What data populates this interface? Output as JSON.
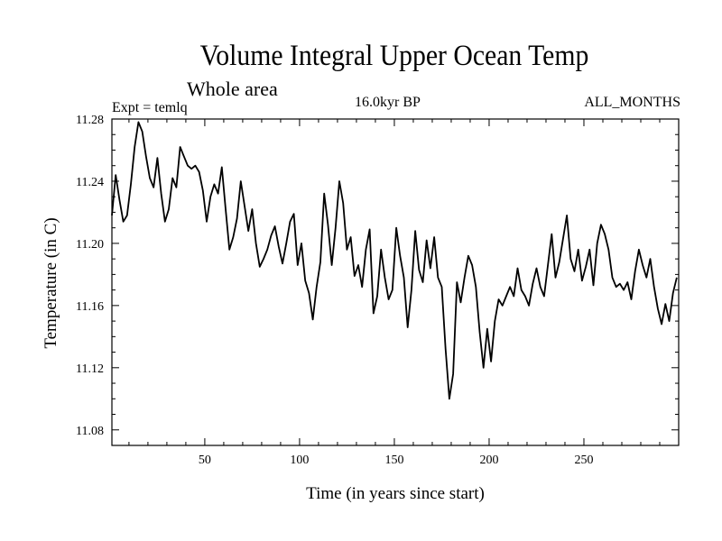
{
  "chart_data": {
    "type": "line",
    "title": "Volume Integral Upper Ocean Temp",
    "subtitle": "Whole area",
    "experiment": "Expt = temlq",
    "period": "16.0kyr BP",
    "months": "ALL_MONTHS",
    "xlabel": "Time (in years since start)",
    "ylabel": "Temperature (in C)",
    "xlim": [
      1,
      300
    ],
    "ylim": [
      11.07,
      11.28
    ],
    "xticks": [
      50,
      100,
      150,
      200,
      250
    ],
    "yticks": [
      "11.08",
      "11.12",
      "11.16",
      "11.20",
      "11.24",
      "11.28"
    ],
    "grid": false,
    "series": [
      {
        "name": "temlq",
        "x": [
          1,
          3,
          5,
          7,
          9,
          11,
          13,
          15,
          17,
          19,
          21,
          23,
          25,
          27,
          29,
          31,
          33,
          35,
          37,
          39,
          41,
          43,
          45,
          47,
          49,
          51,
          53,
          55,
          57,
          59,
          61,
          63,
          65,
          67,
          69,
          71,
          73,
          75,
          77,
          79,
          81,
          83,
          85,
          87,
          89,
          91,
          93,
          95,
          97,
          99,
          101,
          103,
          105,
          107,
          109,
          111,
          113,
          115,
          117,
          119,
          121,
          123,
          125,
          127,
          129,
          131,
          133,
          135,
          137,
          139,
          141,
          143,
          145,
          147,
          149,
          151,
          153,
          155,
          157,
          159,
          161,
          163,
          165,
          167,
          169,
          171,
          173,
          175,
          177,
          179,
          181,
          183,
          185,
          187,
          189,
          191,
          193,
          195,
          197,
          199,
          201,
          203,
          205,
          207,
          209,
          211,
          213,
          215,
          217,
          219,
          221,
          223,
          225,
          227,
          229,
          231,
          233,
          235,
          237,
          239,
          241,
          243,
          245,
          247,
          249,
          251,
          253,
          255,
          257,
          259,
          261,
          263,
          265,
          267,
          269,
          271,
          273,
          275,
          277,
          279,
          281,
          283,
          285,
          287,
          289,
          291,
          293,
          295,
          297,
          299
        ],
        "values": [
          11.218,
          11.244,
          11.228,
          11.214,
          11.218,
          11.238,
          11.262,
          11.278,
          11.272,
          11.256,
          11.242,
          11.236,
          11.255,
          11.232,
          11.214,
          11.222,
          11.242,
          11.236,
          11.262,
          11.256,
          11.25,
          11.248,
          11.25,
          11.246,
          11.234,
          11.214,
          11.23,
          11.238,
          11.232,
          11.249,
          11.222,
          11.196,
          11.204,
          11.216,
          11.24,
          11.224,
          11.208,
          11.222,
          11.2,
          11.185,
          11.19,
          11.196,
          11.205,
          11.211,
          11.198,
          11.187,
          11.2,
          11.214,
          11.219,
          11.186,
          11.2,
          11.176,
          11.168,
          11.151,
          11.172,
          11.188,
          11.232,
          11.212,
          11.186,
          11.21,
          11.24,
          11.226,
          11.196,
          11.204,
          11.179,
          11.186,
          11.172,
          11.196,
          11.209,
          11.155,
          11.166,
          11.196,
          11.178,
          11.164,
          11.17,
          11.21,
          11.192,
          11.178,
          11.146,
          11.17,
          11.208,
          11.183,
          11.175,
          11.202,
          11.184,
          11.204,
          11.178,
          11.172,
          11.132,
          11.1,
          11.116,
          11.175,
          11.162,
          11.178,
          11.192,
          11.186,
          11.172,
          11.143,
          11.12,
          11.145,
          11.124,
          11.15,
          11.164,
          11.16,
          11.166,
          11.172,
          11.166,
          11.184,
          11.17,
          11.166,
          11.16,
          11.174,
          11.184,
          11.172,
          11.166,
          11.186,
          11.206,
          11.178,
          11.188,
          11.203,
          11.218,
          11.19,
          11.182,
          11.196,
          11.176,
          11.185,
          11.196,
          11.173,
          11.2,
          11.212,
          11.206,
          11.196,
          11.178,
          11.172,
          11.174,
          11.17,
          11.175,
          11.164,
          11.182,
          11.196,
          11.186,
          11.178,
          11.19,
          11.172,
          11.158,
          11.148,
          11.161,
          11.15,
          11.168,
          11.178
        ]
      }
    ]
  }
}
